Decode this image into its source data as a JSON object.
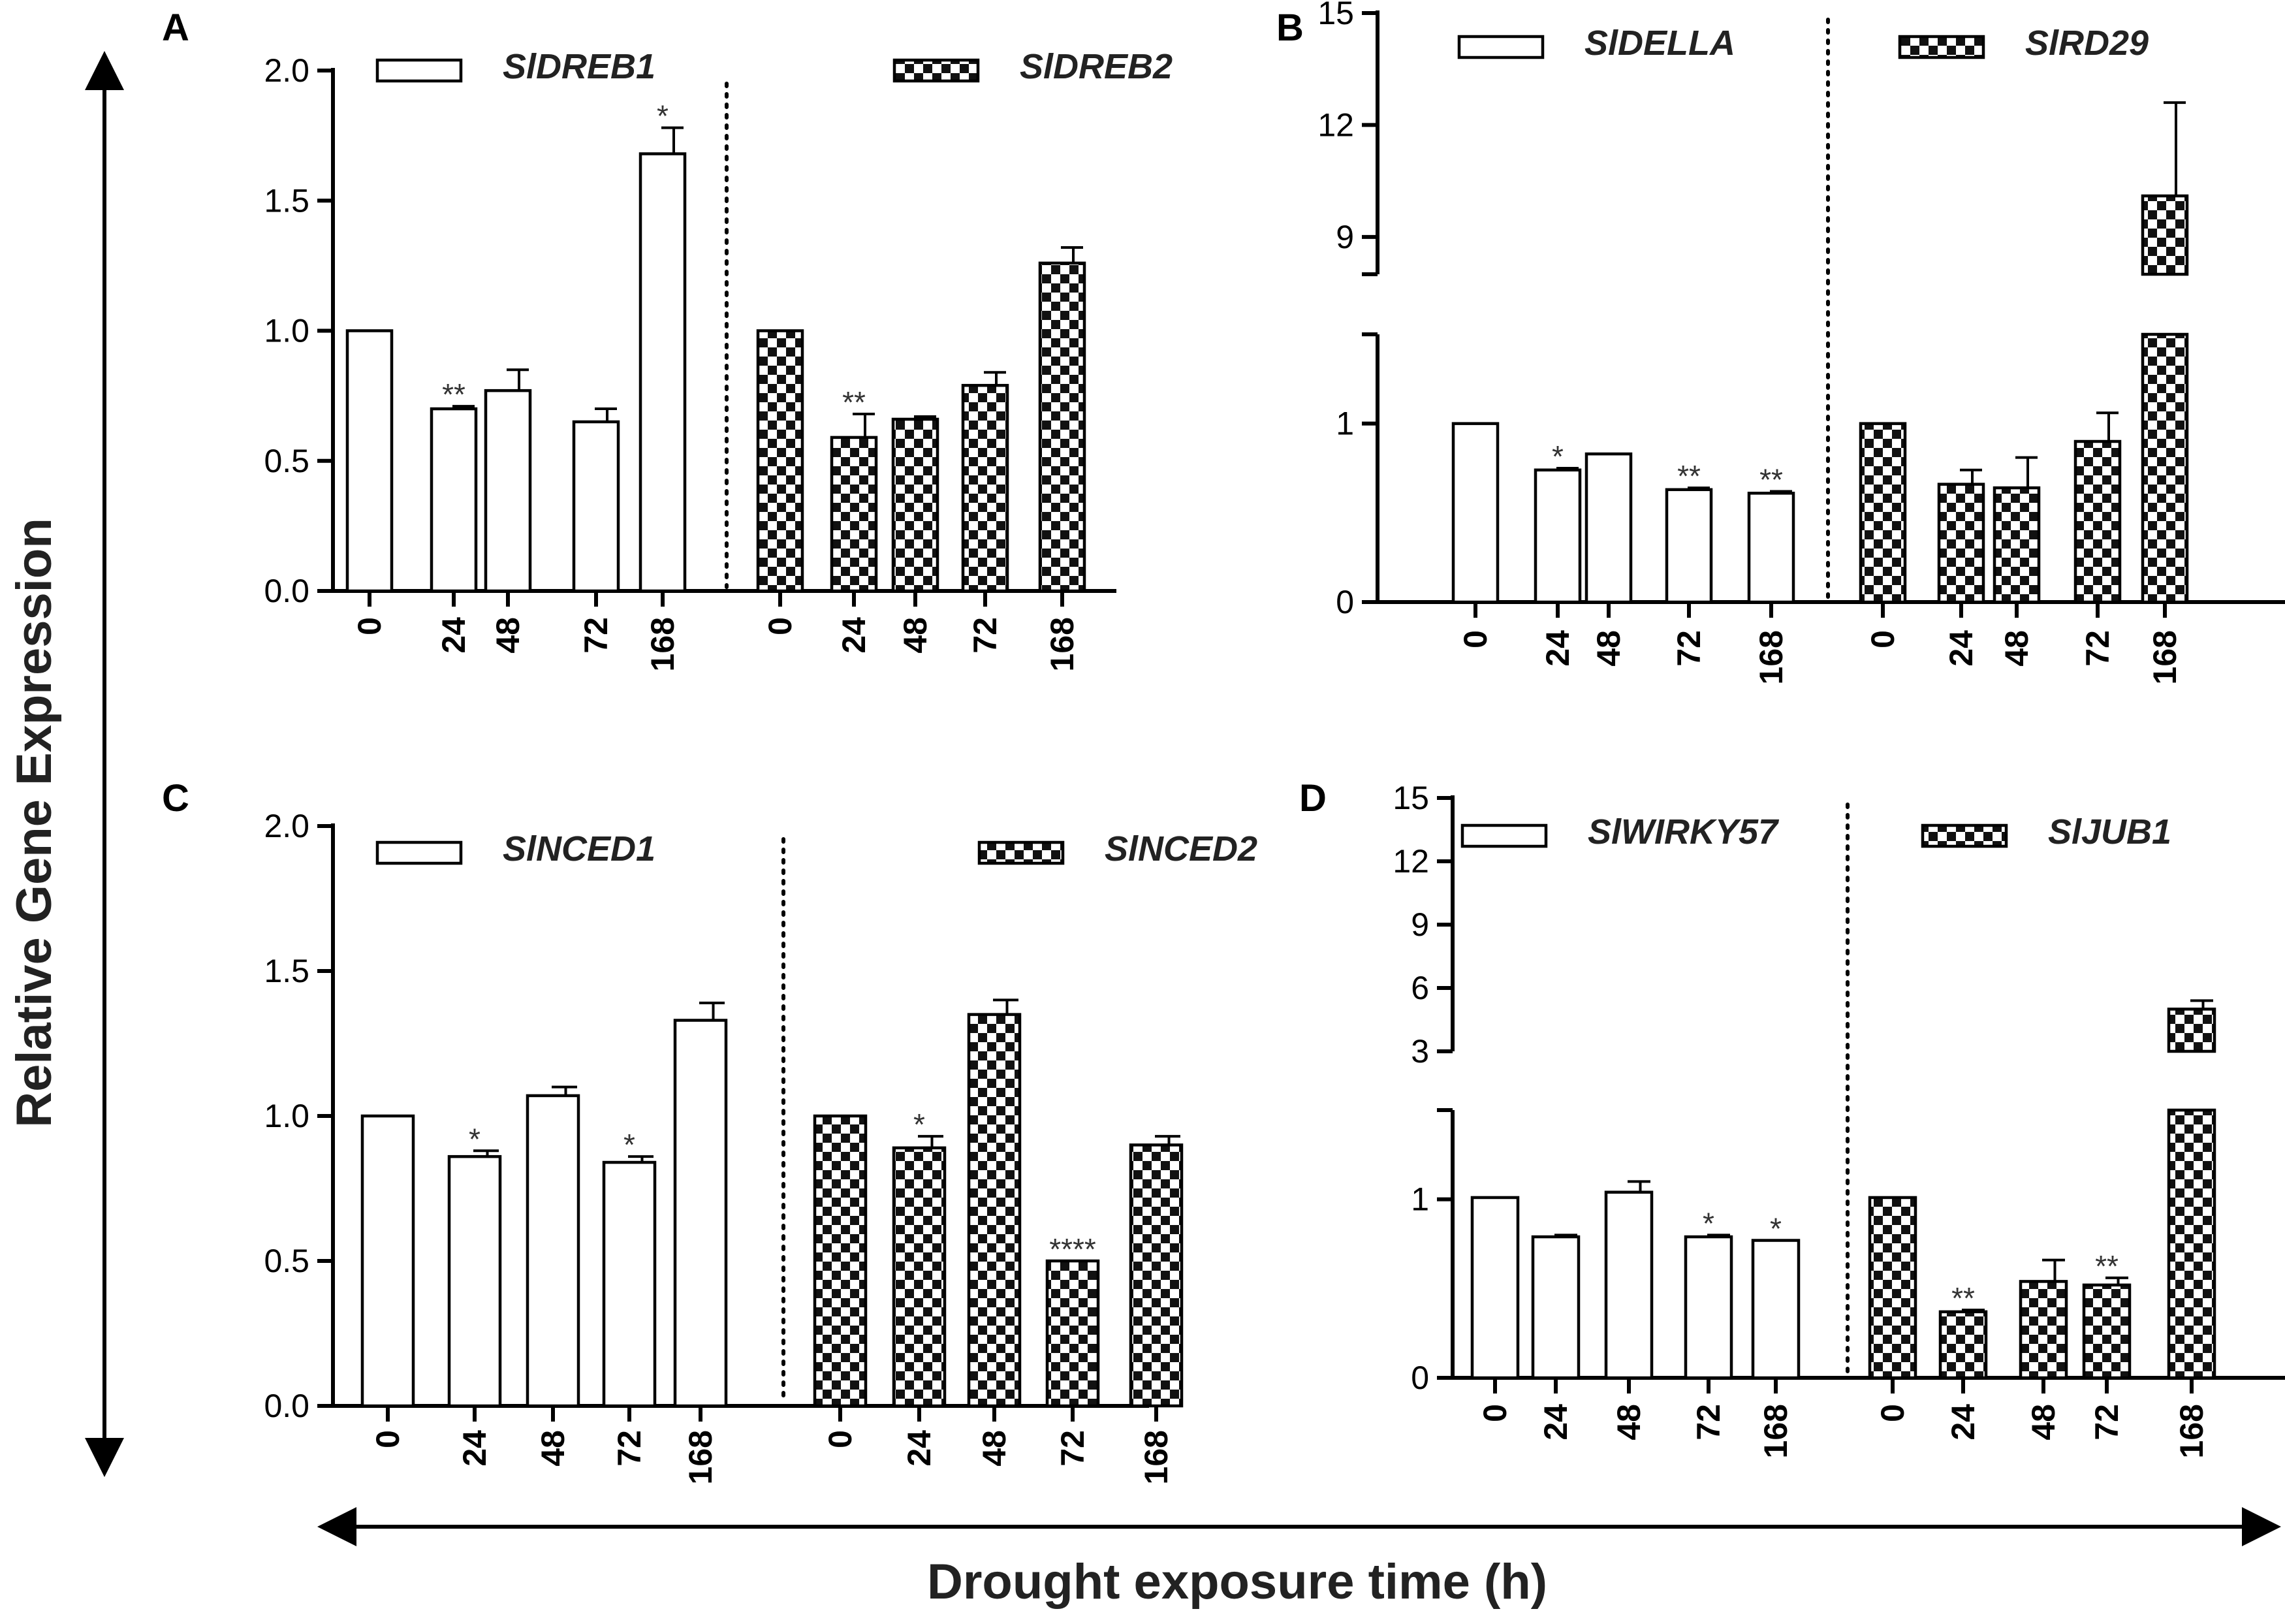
{
  "figure": {
    "y_axis_title": "Relative Gene Expression",
    "x_axis_title": "Drought exposure time (h)"
  },
  "colors": {
    "ink": "#000000",
    "background": "#ffffff"
  },
  "chart_data": [
    {
      "panel": "A",
      "type": "bar",
      "ylim": [
        0,
        2.0
      ],
      "yticks": [
        "0.0",
        "0.5",
        "1.0",
        "1.5",
        "2.0"
      ],
      "ytick_values": [
        0,
        0.5,
        1.0,
        1.5,
        2.0
      ],
      "categories": [
        "0",
        "24",
        "48",
        "72",
        "168"
      ],
      "legend_position": "top",
      "series": [
        {
          "name": "SlDREB1",
          "pattern": "open",
          "values": [
            1.0,
            0.7,
            0.77,
            0.65,
            1.68
          ],
          "errors": [
            0,
            0.01,
            0.08,
            0.05,
            0.1
          ],
          "sig": [
            "",
            "**",
            "",
            "",
            "*"
          ]
        },
        {
          "name": "SlDREB2",
          "pattern": "checker",
          "values": [
            1.0,
            0.59,
            0.66,
            0.79,
            1.26
          ],
          "errors": [
            0,
            0.09,
            0.01,
            0.05,
            0.06
          ],
          "sig": [
            "",
            "**",
            "",
            "",
            ""
          ]
        }
      ]
    },
    {
      "panel": "B",
      "type": "bar",
      "axis_break": true,
      "lower_ylim": [
        0,
        1.5
      ],
      "lower_yticks": [
        "0",
        "1"
      ],
      "lower_ytick_values": [
        0,
        1
      ],
      "upper_ylim": [
        8,
        15
      ],
      "upper_yticks": [
        "9",
        "12",
        "15"
      ],
      "upper_ytick_values": [
        9,
        12,
        15
      ],
      "categories": [
        "0",
        "24",
        "48",
        "72",
        "168"
      ],
      "legend_position": "top",
      "series": [
        {
          "name": "SlDELLA",
          "pattern": "open",
          "values": [
            1.0,
            0.74,
            0.83,
            0.63,
            0.61
          ],
          "errors": [
            0,
            0.01,
            0,
            0.01,
            0.01
          ],
          "sig": [
            "",
            "*",
            "",
            "**",
            "**"
          ]
        },
        {
          "name": "SlRD29",
          "pattern": "checker",
          "values": [
            1.0,
            0.66,
            0.64,
            0.9,
            10.1
          ],
          "errors": [
            0,
            0.08,
            0.17,
            0.16,
            2.5
          ],
          "sig": [
            "",
            "",
            "",
            "",
            ""
          ]
        }
      ]
    },
    {
      "panel": "C",
      "type": "bar",
      "ylim": [
        0,
        2.0
      ],
      "yticks": [
        "0.0",
        "0.5",
        "1.0",
        "1.5",
        "2.0"
      ],
      "ytick_values": [
        0,
        0.5,
        1.0,
        1.5,
        2.0
      ],
      "categories": [
        "0",
        "24",
        "48",
        "72",
        "168"
      ],
      "legend_position": "top",
      "series": [
        {
          "name": "SlNCED1",
          "pattern": "open",
          "values": [
            1.0,
            0.86,
            1.07,
            0.84,
            1.33
          ],
          "errors": [
            0,
            0.02,
            0.03,
            0.02,
            0.06
          ],
          "sig": [
            "",
            "*",
            "",
            "*",
            ""
          ]
        },
        {
          "name": "SlNCED2",
          "pattern": "checker",
          "values": [
            1.0,
            0.89,
            1.35,
            0.5,
            0.9
          ],
          "errors": [
            0,
            0.04,
            0.05,
            0,
            0.03
          ],
          "sig": [
            "",
            "*",
            "",
            "****",
            ""
          ]
        }
      ]
    },
    {
      "panel": "D",
      "type": "bar",
      "axis_break": true,
      "lower_ylim": [
        0,
        1.5
      ],
      "lower_yticks": [
        "0",
        "1"
      ],
      "lower_ytick_values": [
        0,
        1
      ],
      "upper_ylim": [
        3,
        15
      ],
      "upper_yticks": [
        "3",
        "6",
        "9",
        "12",
        "15"
      ],
      "upper_ytick_values": [
        3,
        6,
        9,
        12,
        15
      ],
      "categories": [
        "0",
        "24",
        "48",
        "72",
        "168"
      ],
      "legend_position": "top",
      "series": [
        {
          "name": "SlWIRKY57",
          "pattern": "open",
          "values": [
            1.01,
            0.79,
            1.04,
            0.79,
            0.77
          ],
          "errors": [
            0,
            0.01,
            0.06,
            0.01,
            0
          ],
          "sig": [
            "",
            "",
            "",
            "*",
            "*"
          ]
        },
        {
          "name": "SlJUB1",
          "pattern": "checker",
          "values": [
            1.01,
            0.37,
            0.54,
            0.52,
            5.0
          ],
          "errors": [
            0,
            0.01,
            0.12,
            0.04,
            0.4
          ],
          "sig": [
            "",
            "**",
            "",
            "**",
            ""
          ]
        }
      ]
    }
  ]
}
